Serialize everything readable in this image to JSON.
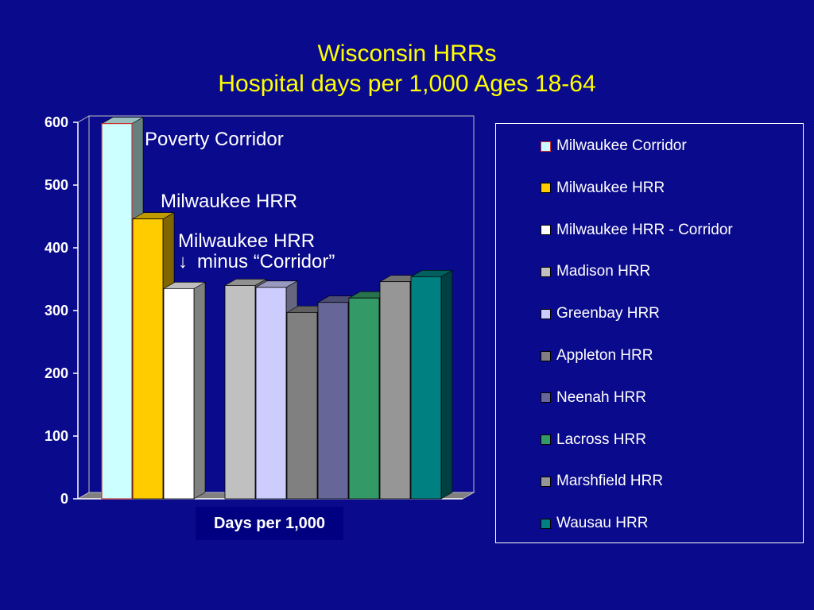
{
  "title": "Wisconsin HRRs",
  "subtitle": "Hospital days per 1,000 Ages 18-64",
  "annotations": {
    "poverty": "Poverty Corridor",
    "milwaukee": "Milwaukee HRR",
    "minus_line1": "Milwaukee HRR",
    "minus_arrow": "↓",
    "minus_line2": "minus “Corridor”"
  },
  "chart_data": {
    "type": "bar",
    "title": "Wisconsin HRRs Hospital days per 1,000 Ages 18-64",
    "xlabel": "Days per 1,000",
    "ylabel": "",
    "ylim": [
      0,
      600
    ],
    "yticks": [
      0,
      100,
      200,
      300,
      400,
      500,
      600
    ],
    "categories": [
      "Days per 1,000"
    ],
    "legend_position": "right",
    "grid": false,
    "series": [
      {
        "name": "Milwaukee Corridor",
        "values": [
          598
        ],
        "color": "#ccffff"
      },
      {
        "name": "Milwaukee HRR",
        "values": [
          446
        ],
        "color": "#ffcc00"
      },
      {
        "name": "Milwaukee HRR - Corridor",
        "values": [
          335
        ],
        "color": "#ffffff"
      },
      {
        "name": "Madison HRR",
        "values": [
          340
        ],
        "color": "#c0c0c0"
      },
      {
        "name": "Greenbay HRR",
        "values": [
          337
        ],
        "color": "#ccccff"
      },
      {
        "name": "Appleton HRR",
        "values": [
          297
        ],
        "color": "#808080"
      },
      {
        "name": "Neenah HRR",
        "values": [
          313
        ],
        "color": "#666699"
      },
      {
        "name": "Lacross HRR",
        "values": [
          320
        ],
        "color": "#339966"
      },
      {
        "name": "Marshfield HRR",
        "values": [
          346
        ],
        "color": "#969696"
      },
      {
        "name": "Wausau HRR",
        "values": [
          354
        ],
        "color": "#008080"
      }
    ]
  }
}
